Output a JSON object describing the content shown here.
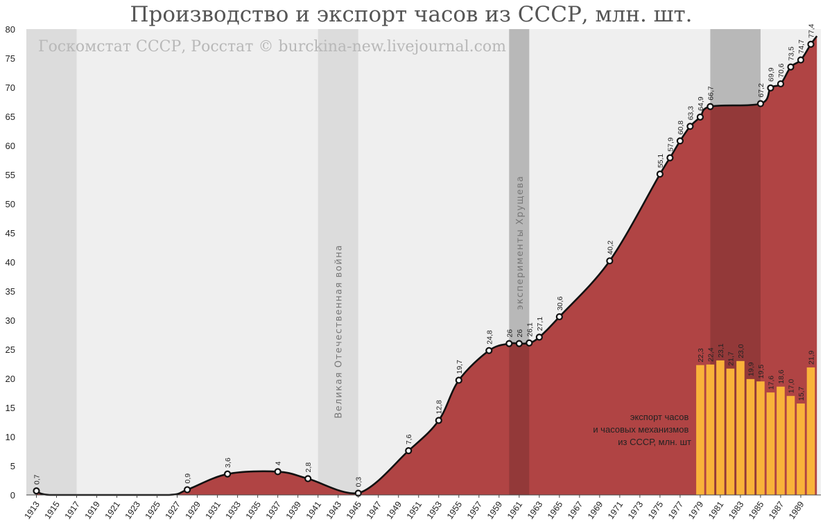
{
  "chart_data": {
    "type": "area",
    "title": "Производство и экспорт часов из СССР, млн. шт.",
    "subtitle": "Госкомстат СССР, Росстат © burckina-new.livejournal.com",
    "xlabel": "",
    "ylabel": "",
    "xlim": [
      1912,
      1991
    ],
    "ylim": [
      0,
      80
    ],
    "yticks": [
      0,
      5,
      10,
      15,
      20,
      25,
      30,
      35,
      40,
      45,
      50,
      55,
      60,
      65,
      70,
      75,
      80
    ],
    "xticks": [
      1913,
      1915,
      1917,
      1919,
      1921,
      1923,
      1925,
      1927,
      1929,
      1931,
      1933,
      1935,
      1937,
      1939,
      1941,
      1943,
      1945,
      1947,
      1949,
      1951,
      1953,
      1955,
      1957,
      1959,
      1961,
      1963,
      1965,
      1967,
      1969,
      1971,
      1973,
      1975,
      1977,
      1979,
      1981,
      1983,
      1985,
      1987,
      1989
    ],
    "grid": false,
    "colors": {
      "area": "#b04444",
      "line": "#111111",
      "bars": "#f9b33a",
      "band": "#dcdcdc",
      "band_dark": "#8c3838",
      "background": "#efefef"
    },
    "shaded_periods": [
      {
        "from": 1912,
        "to": 1917,
        "label": ""
      },
      {
        "from": 1941,
        "to": 1945,
        "label": "Великая Отечественная война"
      },
      {
        "from": 1960,
        "to": 1962,
        "label": "эксперименты Хрущева"
      },
      {
        "from": 1980,
        "to": 1985,
        "label": ""
      }
    ],
    "series": [
      {
        "kind": "area",
        "x": [
          1913,
          1928,
          1932,
          1937,
          1940,
          1945,
          1950,
          1953,
          1955,
          1958,
          1960,
          1961,
          1962,
          1963,
          1965,
          1970,
          1975,
          1976,
          1977,
          1978,
          1979,
          1980,
          1985,
          1986,
          1987,
          1988,
          1989,
          1990
        ],
        "values": [
          0.7,
          0.9,
          3.6,
          4,
          2.8,
          0.3,
          7.6,
          12.8,
          19.7,
          24.8,
          26,
          26,
          26.1,
          27.1,
          30.6,
          40.2,
          55.1,
          57.9,
          60.8,
          63.3,
          64.9,
          66.7,
          67.2,
          69.9,
          70.6,
          73.5,
          74.7,
          77.4
        ],
        "labels": [
          "0,7",
          "0,9",
          "3,6",
          "4",
          "2,8",
          "0,3",
          "7,6",
          "12,8",
          "19,7",
          "24,8",
          "26",
          "26",
          "26,1",
          "27,1",
          "30,6",
          "40,2",
          "55,1",
          "57,9",
          "60,8",
          "63,3",
          "64,9",
          "66,7",
          "67,2",
          "69,9",
          "70,6",
          "73,5",
          "74,7",
          "77,4"
        ]
      },
      {
        "kind": "bar",
        "name": "экспорт часов и часовых механизмов из СССР, млн. шт",
        "x": [
          1979,
          1980,
          1981,
          1982,
          1983,
          1984,
          1985,
          1986,
          1987,
          1988,
          1989,
          1990
        ],
        "values": [
          22.3,
          22.4,
          23.1,
          21.7,
          23.0,
          19.9,
          19.5,
          17.6,
          18.6,
          17.0,
          15.7,
          21.9
        ],
        "labels": [
          "22,3",
          "22,4",
          "23,1",
          "21,7",
          "23,0",
          "19,9",
          "19,5",
          "17,6",
          "18,6",
          "17,0",
          "15,7",
          "21,9"
        ]
      }
    ],
    "annotation": [
      "экспорт часов",
      "и часовых механизмов",
      "из СССР, млн. шт"
    ]
  }
}
